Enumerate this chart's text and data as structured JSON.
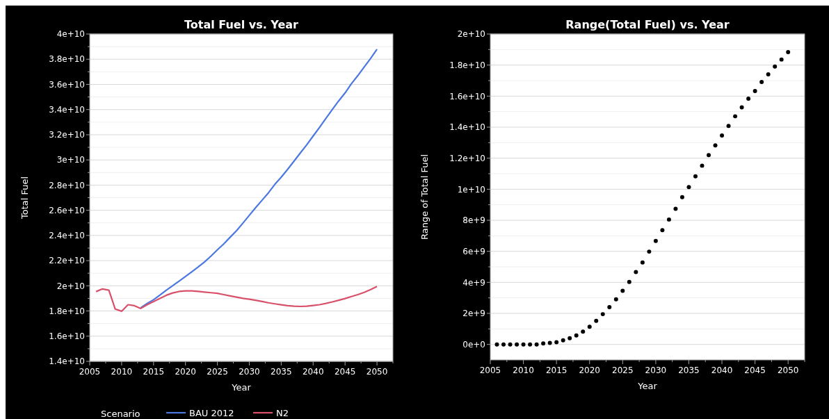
{
  "chart_data": [
    {
      "type": "line",
      "title": "Total Fuel vs. Year",
      "xlabel": "Year",
      "ylabel": "Total Fuel",
      "legend_title": "Scenario",
      "legend": "bottom",
      "grid": true,
      "line_style": "solid",
      "marker": "none",
      "xlim": [
        2005,
        2052.5
      ],
      "ylim": [
        14000000000,
        40000000000
      ],
      "xticks": [
        2005,
        2010,
        2015,
        2020,
        2025,
        2030,
        2035,
        2040,
        2045,
        2050
      ],
      "yticks": [
        {
          "value": 14000000000,
          "label": "1.4e+10"
        },
        {
          "value": 16000000000,
          "label": "1.6e+10"
        },
        {
          "value": 18000000000,
          "label": "1.8e+10"
        },
        {
          "value": 20000000000,
          "label": "2e+10"
        },
        {
          "value": 22000000000,
          "label": "2.2e+10"
        },
        {
          "value": 24000000000,
          "label": "2.4e+10"
        },
        {
          "value": 26000000000,
          "label": "2.6e+10"
        },
        {
          "value": 28000000000,
          "label": "2.8e+10"
        },
        {
          "value": 30000000000,
          "label": "3e+10"
        },
        {
          "value": 32000000000,
          "label": "3.2e+10"
        },
        {
          "value": 34000000000,
          "label": "3.4e+10"
        },
        {
          "value": 36000000000,
          "label": "3.6e+10"
        },
        {
          "value": 38000000000,
          "label": "3.8e+10"
        },
        {
          "value": 40000000000,
          "label": "4e+10"
        }
      ],
      "series": [
        {
          "name": "BAU 2012",
          "color": "#4a78e0",
          "x": [
            2013,
            2014,
            2015,
            2016,
            2017,
            2018,
            2019,
            2020,
            2021,
            2022,
            2023,
            2024,
            2025,
            2026,
            2027,
            2028,
            2029,
            2030,
            2031,
            2032,
            2033,
            2034,
            2035,
            2036,
            2037,
            2038,
            2039,
            2040,
            2041,
            2042,
            2043,
            2044,
            2045,
            2046,
            2047,
            2048,
            2049,
            2050
          ],
          "values": [
            18260000000,
            18600000000,
            18890000000,
            19260000000,
            19650000000,
            20010000000,
            20370000000,
            20740000000,
            21120000000,
            21500000000,
            21900000000,
            22360000000,
            22860000000,
            23330000000,
            23860000000,
            24380000000,
            24980000000,
            25600000000,
            26210000000,
            26800000000,
            27390000000,
            28060000000,
            28630000000,
            29250000000,
            29900000000,
            30560000000,
            31200000000,
            31900000000,
            32580000000,
            33300000000,
            34000000000,
            34690000000,
            35320000000,
            36060000000,
            36700000000,
            37390000000,
            38060000000,
            38790000000
          ]
        },
        {
          "name": "N2",
          "color": "#d9506a",
          "x": [
            2006,
            2007,
            2008,
            2009,
            2010,
            2011,
            2012,
            2013,
            2014,
            2015,
            2016,
            2017,
            2018,
            2019,
            2020,
            2021,
            2022,
            2023,
            2024,
            2025,
            2026,
            2027,
            2028,
            2029,
            2030,
            2031,
            2032,
            2033,
            2034,
            2035,
            2036,
            2037,
            2038,
            2039,
            2040,
            2041,
            2042,
            2043,
            2044,
            2045,
            2046,
            2047,
            2048,
            2049,
            2050
          ],
          "values": [
            19540000000,
            19750000000,
            19650000000,
            18150000000,
            17980000000,
            18500000000,
            18420000000,
            18200000000,
            18500000000,
            18750000000,
            19000000000,
            19250000000,
            19430000000,
            19550000000,
            19600000000,
            19600000000,
            19550000000,
            19500000000,
            19450000000,
            19400000000,
            19300000000,
            19200000000,
            19100000000,
            19000000000,
            18930000000,
            18850000000,
            18750000000,
            18650000000,
            18570000000,
            18490000000,
            18420000000,
            18380000000,
            18360000000,
            18380000000,
            18440000000,
            18500000000,
            18600000000,
            18720000000,
            18850000000,
            18990000000,
            19150000000,
            19300000000,
            19480000000,
            19700000000,
            19950000000
          ]
        }
      ]
    },
    {
      "type": "scatter",
      "title": "Range(Total Fuel) vs. Year",
      "xlabel": "Year",
      "ylabel": "Range of Total Fuel",
      "grid": true,
      "marker": "circle",
      "xlim": [
        2005,
        2052.5
      ],
      "ylim": [
        -1000000000,
        20000000000
      ],
      "xticks": [
        2005,
        2010,
        2015,
        2020,
        2025,
        2030,
        2035,
        2040,
        2045,
        2050
      ],
      "yticks": [
        {
          "value": 0,
          "label": "0e+0"
        },
        {
          "value": 2000000000,
          "label": "2e+9"
        },
        {
          "value": 4000000000,
          "label": "4e+9"
        },
        {
          "value": 6000000000,
          "label": "6e+9"
        },
        {
          "value": 8000000000,
          "label": "8e+9"
        },
        {
          "value": 10000000000,
          "label": "1e+10"
        },
        {
          "value": 12000000000,
          "label": "1.2e+10"
        },
        {
          "value": 14000000000,
          "label": "1.4e+10"
        },
        {
          "value": 16000000000,
          "label": "1.6e+10"
        },
        {
          "value": 18000000000,
          "label": "1.8e+10"
        },
        {
          "value": 20000000000,
          "label": "2e+10"
        }
      ],
      "series": [
        {
          "color": "#000000",
          "x": [
            2006,
            2007,
            2008,
            2009,
            2010,
            2011,
            2012,
            2013,
            2014,
            2015,
            2016,
            2017,
            2018,
            2019,
            2020,
            2021,
            2022,
            2023,
            2024,
            2025,
            2026,
            2027,
            2028,
            2029,
            2030,
            2031,
            2032,
            2033,
            2034,
            2035,
            2036,
            2037,
            2038,
            2039,
            2040,
            2041,
            2042,
            2043,
            2044,
            2045,
            2046,
            2047,
            2048,
            2049,
            2050
          ],
          "values": [
            0,
            0,
            0,
            0,
            0,
            0,
            0,
            60000000,
            100000000,
            140000000,
            260000000,
            400000000,
            580000000,
            820000000,
            1140000000,
            1520000000,
            1950000000,
            2400000000,
            2910000000,
            3460000000,
            4030000000,
            4660000000,
            5280000000,
            5980000000,
            6670000000,
            7360000000,
            8050000000,
            8740000000,
            9490000000,
            10140000000,
            10830000000,
            11520000000,
            12200000000,
            12820000000,
            13460000000,
            14080000000,
            14700000000,
            15280000000,
            15840000000,
            16330000000,
            16910000000,
            17400000000,
            17910000000,
            18360000000,
            18840000000
          ]
        }
      ]
    }
  ]
}
